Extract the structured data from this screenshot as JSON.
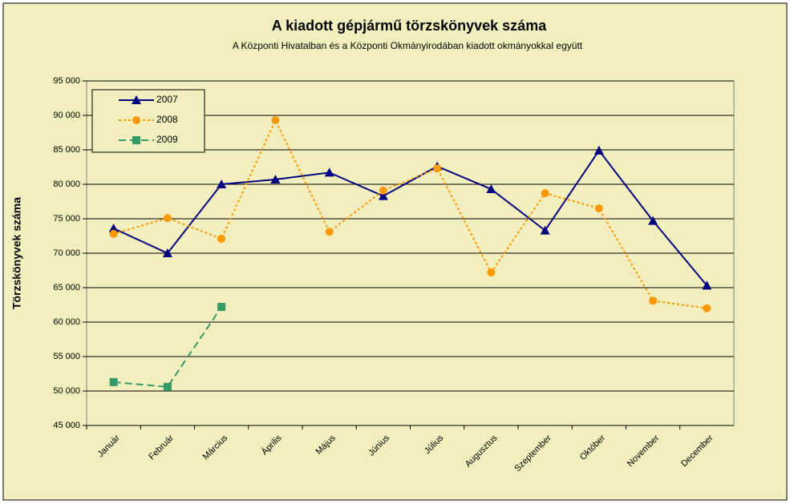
{
  "chart_data": {
    "type": "line",
    "title": "A  kiadott gépjármű  törzskönyvek száma",
    "subtitle": "A Központi Hivatalban és a Központi Okmányirodában kiadott okmányokkal együtt",
    "y_label": "Törzskönyvek száma",
    "categories": [
      "Január",
      "Február",
      "Március",
      "Április",
      "Május",
      "Június",
      "Július",
      "Augusztus",
      "Szeptember",
      "Október",
      "November",
      "December"
    ],
    "series": [
      {
        "name": "2007",
        "color": "#000080",
        "marker": "triangle",
        "dash": "solid",
        "values": [
          73600,
          70000,
          80000,
          80700,
          81700,
          78300,
          82600,
          79300,
          73300,
          84900,
          74700,
          65300
        ]
      },
      {
        "name": "2008",
        "color": "#ff9900",
        "marker": "circle",
        "dash": "dotted",
        "values": [
          72800,
          75100,
          72100,
          89300,
          73100,
          79100,
          82300,
          67200,
          78700,
          76500,
          63100,
          62000
        ]
      },
      {
        "name": "2009",
        "color": "#339966",
        "marker": "square",
        "dash": "dashed",
        "values": [
          51300,
          50600,
          62200,
          null,
          null,
          null,
          null,
          null,
          null,
          null,
          null,
          null
        ]
      }
    ],
    "ylim": [
      45000,
      95000
    ],
    "yticks": [
      {
        "value": 45000,
        "label": "45 000"
      },
      {
        "value": 50000,
        "label": "50 000"
      },
      {
        "value": 55000,
        "label": "55 000"
      },
      {
        "value": 60000,
        "label": "60 000"
      },
      {
        "value": 65000,
        "label": "65 000"
      },
      {
        "value": 70000,
        "label": "70 000"
      },
      {
        "value": 75000,
        "label": "75 000"
      },
      {
        "value": 80000,
        "label": "80 000"
      },
      {
        "value": 85000,
        "label": "85 000"
      },
      {
        "value": 90000,
        "label": "90 000"
      },
      {
        "value": 95000,
        "label": "95 000"
      }
    ],
    "grid": true,
    "legend": "top-left"
  }
}
